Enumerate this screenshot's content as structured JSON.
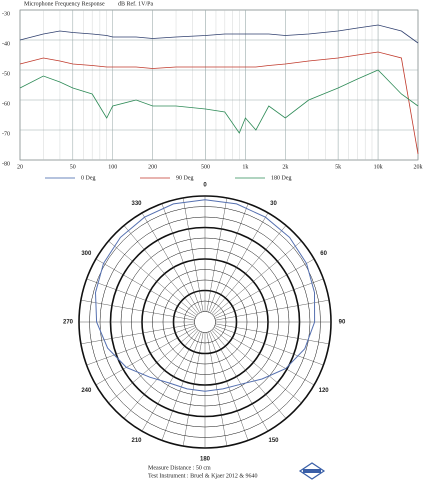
{
  "chart_data": [
    {
      "type": "line",
      "title": "Microphone Frequency Response",
      "ylabel": "dB Ref. 1V/Pa",
      "x": [
        20,
        30,
        40,
        50,
        70,
        90,
        100,
        150,
        200,
        300,
        500,
        700,
        900,
        1000,
        1200,
        1500,
        2000,
        3000,
        5000,
        7000,
        10000,
        15000,
        20000
      ],
      "xlim": [
        20,
        20000
      ],
      "xticks": [
        20,
        50,
        100,
        200,
        500,
        {
          "value": 1000,
          "label": "1k"
        },
        {
          "value": 2000,
          "label": "2k"
        },
        {
          "value": 5000,
          "label": "5k"
        },
        {
          "value": 10000,
          "label": "10k"
        },
        {
          "value": 20000,
          "label": "20k"
        }
      ],
      "xscale": "log",
      "ylim": [
        -80,
        -30
      ],
      "yticks": [
        -30,
        -40,
        -50,
        -60,
        -70,
        -80
      ],
      "grid": true,
      "series": [
        {
          "name": "0 Deg",
          "color": "#2f3f6e",
          "legend_color": "#3a5fa8",
          "values": [
            -40,
            -38,
            -37,
            -37.5,
            -38,
            -38.5,
            -39,
            -39,
            -39.5,
            -39,
            -38.5,
            -38,
            -38,
            -38,
            -38,
            -38,
            -38.5,
            -38,
            -37,
            -36,
            -35,
            -37,
            -41
          ]
        },
        {
          "name": "90 Deg",
          "color": "#c0392b",
          "legend_color": "#c0392b",
          "values": [
            -48,
            -46,
            -47,
            -48,
            -48.5,
            -49,
            -49,
            -49,
            -49.5,
            -49,
            -49,
            -49,
            -49,
            -49,
            -49,
            -48.5,
            -48,
            -47,
            -46,
            -45,
            -44,
            -46,
            -78
          ]
        },
        {
          "name": "180 Deg",
          "color": "#2e8b57",
          "legend_color": "#2e8b57",
          "values": [
            -56,
            -52,
            -54,
            -56,
            -58,
            -66,
            -62,
            -60,
            -62,
            -62,
            -63,
            -64,
            -71,
            -66,
            -70,
            -62,
            -66,
            -60,
            -56,
            -53,
            -50,
            -58,
            -62
          ]
        }
      ]
    },
    {
      "type": "polar",
      "theta": [
        0,
        15,
        30,
        45,
        60,
        75,
        90,
        105,
        120,
        135,
        150,
        165,
        180,
        195,
        210,
        225,
        240,
        255,
        270,
        285,
        300,
        315,
        330,
        345
      ],
      "thetaticks": [
        0,
        30,
        60,
        90,
        120,
        150,
        180,
        210,
        240,
        270,
        300,
        330
      ],
      "rlim": [
        0,
        1
      ],
      "series": [
        {
          "color": "#5570b0",
          "r": [
            0.97,
            0.97,
            0.96,
            0.95,
            0.93,
            0.9,
            0.87,
            0.82,
            0.74,
            0.64,
            0.57,
            0.55,
            0.55,
            0.55,
            0.56,
            0.62,
            0.72,
            0.8,
            0.86,
            0.9,
            0.93,
            0.95,
            0.96,
            0.97
          ]
        }
      ],
      "annotations": [
        "Measure Distance : 50 cm",
        "Test Instrument : Bruel & Kjaer 2012 & 9640"
      ]
    }
  ]
}
